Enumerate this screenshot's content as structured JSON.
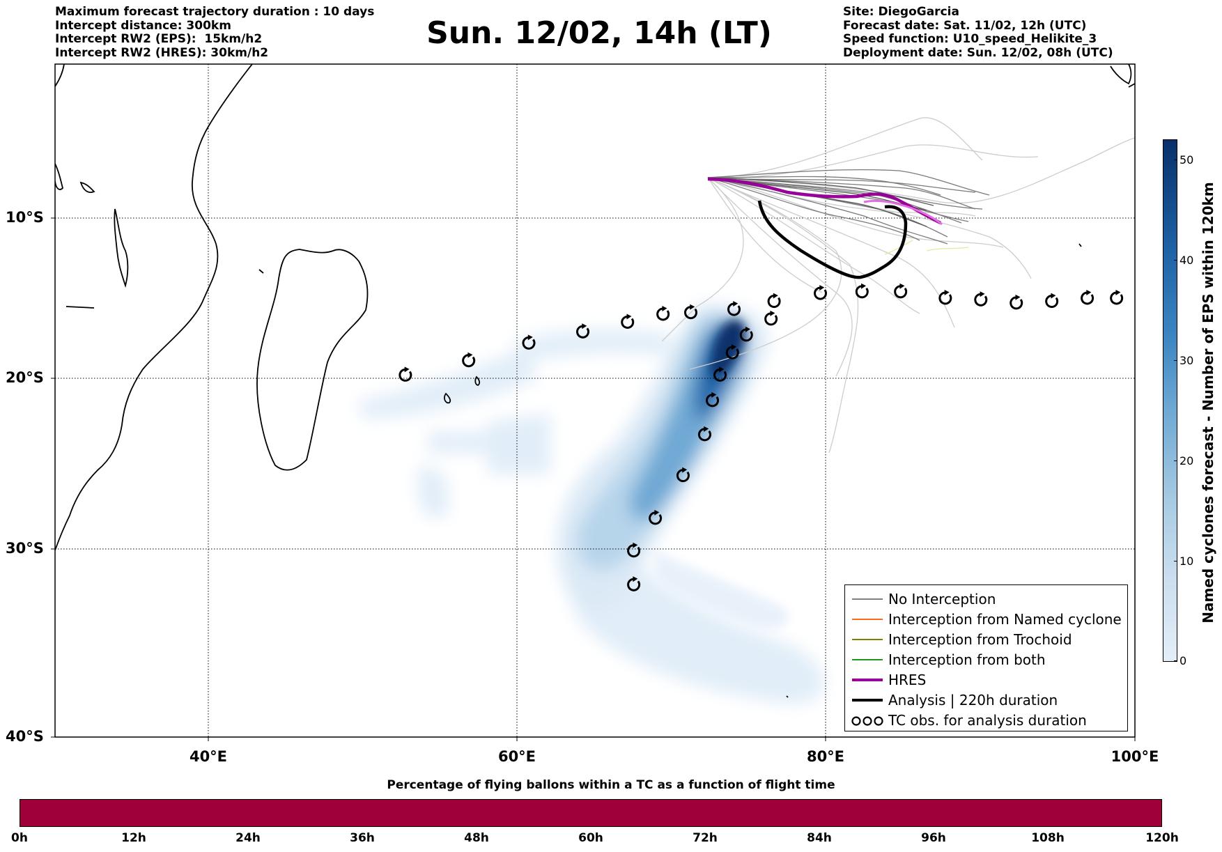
{
  "header": {
    "left_lines": [
      "Maximum forecast trajectory duration : 10 days",
      "Intercept distance: 300km",
      "Intercept RW2 (EPS):  15km/h2",
      "Intercept RW2 (HRES): 30km/h2"
    ],
    "right_lines": [
      "Site: DiegoGarcia",
      "Forecast date: Sat. 11/02, 12h (UTC)",
      "Speed function: U10_speed_Helikite_3",
      "Deployment date: Sun. 12/02, 08h (UTC)"
    ],
    "title": "Sun. 12/02, 14h (LT)"
  },
  "map": {
    "lon_range": [
      30,
      100
    ],
    "lat_range": [
      -40,
      0
    ],
    "lat_labels": [
      "10°S",
      "20°S",
      "30°S",
      "40°S"
    ],
    "lon_labels": [
      "40°E",
      "60°E",
      "80°E",
      "100°E"
    ],
    "grid": true
  },
  "legend": {
    "items": [
      {
        "label": "No Interception",
        "color": "#808080"
      },
      {
        "label": "Interception from Named cyclone",
        "color": "#ff6a1a"
      },
      {
        "label": "Interception from Trochoid",
        "color": "#808000"
      },
      {
        "label": "Interception from both",
        "color": "#1a9a1a"
      },
      {
        "label": "HRES",
        "color": "#990099"
      },
      {
        "label": "Analysis | 220h duration",
        "color": "#000000"
      },
      {
        "label": "TC obs. for analysis duration",
        "color": "#000000"
      }
    ]
  },
  "colorbar_right": {
    "title": "Named cyclones forecast - Number of EPS within 120km",
    "ticks": [
      "0",
      "10",
      "20",
      "30",
      "40",
      "50"
    ]
  },
  "colorbar_bottom": {
    "title": "Percentage of flying ballons within a TC as a function of flight time",
    "ticks": [
      "0h",
      "12h",
      "24h",
      "36h",
      "48h",
      "60h",
      "72h",
      "84h",
      "96h",
      "108h",
      "120h"
    ],
    "color": "#a0003a"
  },
  "tc_obs_lonlat": [
    [
      52.7,
      -19.8
    ],
    [
      56.8,
      -18.9
    ],
    [
      60.7,
      -17.8
    ],
    [
      64.2,
      -17.1
    ],
    [
      67.1,
      -16.5
    ],
    [
      69.4,
      -16.0
    ],
    [
      71.2,
      -15.9
    ],
    [
      74.0,
      -15.7
    ],
    [
      76.6,
      -15.2
    ],
    [
      79.6,
      -14.7
    ],
    [
      82.3,
      -14.6
    ],
    [
      84.8,
      -14.6
    ],
    [
      87.7,
      -15.0
    ],
    [
      90.0,
      -15.1
    ],
    [
      92.3,
      -15.3
    ],
    [
      94.6,
      -15.2
    ],
    [
      96.9,
      -15.0
    ],
    [
      98.8,
      -15.0
    ],
    [
      76.4,
      -16.3
    ],
    [
      74.8,
      -17.3
    ],
    [
      73.9,
      -18.4
    ],
    [
      73.1,
      -19.8
    ],
    [
      72.6,
      -21.3
    ],
    [
      72.1,
      -23.3
    ],
    [
      70.7,
      -25.7
    ],
    [
      68.9,
      -28.2
    ],
    [
      67.5,
      -30.1
    ],
    [
      67.5,
      -31.9
    ]
  ]
}
